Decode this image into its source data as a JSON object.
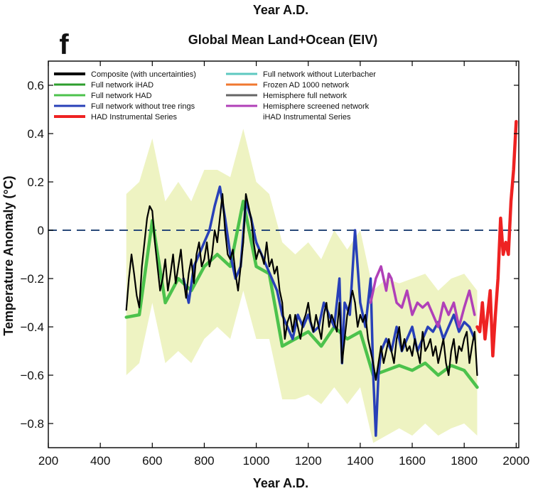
{
  "chart_data": {
    "type": "line",
    "panel_label": "f",
    "top_xlabel": "Year A.D.",
    "title": "Global Mean Land+Ocean (EIV)",
    "xlabel": "Year A.D.",
    "ylabel": "Temperature Anomaly (°C)",
    "xlim": [
      200,
      2010
    ],
    "ylim": [
      -0.9,
      0.7
    ],
    "xticks": [
      200,
      400,
      600,
      800,
      1000,
      1200,
      1400,
      1600,
      1800,
      2000
    ],
    "yticks": [
      -0.8,
      -0.6,
      -0.4,
      -0.2,
      0,
      0.2,
      0.4,
      0.6
    ],
    "ytick_labels": [
      "−0.8",
      "−0.6",
      "−0.4",
      "−0.2",
      "0",
      "0.2",
      "0.4",
      "0.6"
    ],
    "reference_line": 0,
    "legend_placement": "top-left",
    "legend": [
      {
        "label": "Composite (with uncertainties)",
        "color": "#000000"
      },
      {
        "label": "Full network iHAD",
        "color": "#2e9e2e"
      },
      {
        "label": "Full network HAD",
        "color": "#4cc24c"
      },
      {
        "label": "Full network without tree rings",
        "color": "#2840b8"
      },
      {
        "label": "HAD Instrumental Series",
        "color": "#ee2222"
      },
      {
        "label": "Full network without Luterbacher",
        "color": "#5ec8c0"
      },
      {
        "label": "Frozen AD 1000 network",
        "color": "#f07830"
      },
      {
        "label": "Hemisphere full network",
        "color": "#666666"
      },
      {
        "label": "Hemisphere screened network",
        "color": "#b040b8"
      },
      {
        "label": "iHAD Instrumental Series",
        "color": "#ffffff"
      }
    ],
    "series": [
      {
        "name": "Composite (with uncertainties)",
        "color": "#000000",
        "width": 2.2,
        "x": [
          500,
          510,
          520,
          530,
          540,
          550,
          560,
          570,
          580,
          590,
          600,
          610,
          620,
          630,
          640,
          650,
          660,
          670,
          680,
          690,
          700,
          710,
          720,
          730,
          740,
          750,
          760,
          770,
          780,
          790,
          800,
          810,
          820,
          830,
          840,
          850,
          860,
          870,
          880,
          890,
          900,
          910,
          920,
          930,
          940,
          950,
          960,
          970,
          980,
          990,
          1000,
          1010,
          1020,
          1030,
          1040,
          1050,
          1060,
          1070,
          1080,
          1090,
          1100,
          1110,
          1120,
          1130,
          1140,
          1150,
          1160,
          1170,
          1180,
          1190,
          1200,
          1210,
          1220,
          1230,
          1240,
          1250,
          1260,
          1270,
          1280,
          1290,
          1300,
          1310,
          1320,
          1330,
          1340,
          1350,
          1360,
          1370,
          1380,
          1390,
          1400,
          1410,
          1420,
          1430,
          1440,
          1450,
          1460,
          1470,
          1480,
          1490,
          1500,
          1510,
          1520,
          1530,
          1540,
          1550,
          1560,
          1570,
          1580,
          1590,
          1600,
          1610,
          1620,
          1630,
          1640,
          1650,
          1660,
          1670,
          1680,
          1690,
          1700,
          1710,
          1720,
          1730,
          1740,
          1750,
          1760,
          1770,
          1780,
          1790,
          1800,
          1810,
          1820,
          1830,
          1840,
          1850
        ],
        "y": [
          -0.33,
          -0.2,
          -0.1,
          -0.18,
          -0.27,
          -0.32,
          -0.15,
          -0.05,
          0.05,
          0.1,
          0.08,
          -0.05,
          -0.15,
          -0.25,
          -0.2,
          -0.12,
          -0.25,
          -0.18,
          -0.1,
          -0.22,
          -0.15,
          -0.08,
          -0.2,
          -0.28,
          -0.18,
          -0.12,
          -0.22,
          -0.1,
          -0.05,
          -0.15,
          -0.12,
          -0.05,
          -0.15,
          -0.1,
          0.0,
          -0.05,
          0.05,
          0.15,
          0.0,
          -0.1,
          -0.12,
          -0.08,
          -0.18,
          -0.25,
          -0.15,
          -0.05,
          0.15,
          0.1,
          0.05,
          -0.05,
          -0.12,
          -0.08,
          -0.1,
          -0.14,
          -0.05,
          -0.15,
          -0.12,
          -0.18,
          -0.15,
          -0.25,
          -0.3,
          -0.45,
          -0.38,
          -0.35,
          -0.42,
          -0.35,
          -0.4,
          -0.45,
          -0.38,
          -0.35,
          -0.3,
          -0.38,
          -0.42,
          -0.35,
          -0.4,
          -0.45,
          -0.35,
          -0.3,
          -0.4,
          -0.35,
          -0.38,
          -0.42,
          -0.3,
          -0.55,
          -0.45,
          -0.35,
          -0.3,
          -0.25,
          -0.3,
          -0.4,
          -0.35,
          -0.38,
          -0.35,
          -0.45,
          -0.5,
          -0.55,
          -0.62,
          -0.55,
          -0.48,
          -0.55,
          -0.5,
          -0.45,
          -0.5,
          -0.55,
          -0.45,
          -0.4,
          -0.5,
          -0.45,
          -0.5,
          -0.48,
          -0.52,
          -0.45,
          -0.5,
          -0.55,
          -0.42,
          -0.5,
          -0.48,
          -0.45,
          -0.52,
          -0.48,
          -0.55,
          -0.5,
          -0.45,
          -0.55,
          -0.6,
          -0.5,
          -0.45,
          -0.55,
          -0.48,
          -0.5,
          -0.45,
          -0.42,
          -0.55,
          -0.48,
          -0.42,
          -0.6
        ]
      },
      {
        "name": "Full network HAD",
        "color": "#4cc24c",
        "width": 4.5,
        "x": [
          500,
          550,
          600,
          650,
          700,
          750,
          800,
          850,
          900,
          950,
          1000,
          1050,
          1100,
          1150,
          1200,
          1250,
          1300,
          1350,
          1400,
          1450,
          1500,
          1550,
          1600,
          1650,
          1700,
          1750,
          1800,
          1850
        ],
        "y": [
          -0.36,
          -0.35,
          0.04,
          -0.3,
          -0.2,
          -0.25,
          -0.15,
          -0.1,
          -0.15,
          0.12,
          -0.15,
          -0.18,
          -0.48,
          -0.45,
          -0.42,
          -0.48,
          -0.4,
          -0.45,
          -0.42,
          -0.6,
          -0.58,
          -0.56,
          -0.58,
          -0.55,
          -0.6,
          -0.56,
          -0.58,
          -0.65
        ]
      },
      {
        "name": "Full network without tree rings",
        "color": "#2840b8",
        "width": 3.5,
        "x": [
          720,
          740,
          760,
          780,
          800,
          820,
          840,
          860,
          880,
          900,
          920,
          940,
          960,
          980,
          1000,
          1020,
          1040,
          1060,
          1080,
          1100,
          1120,
          1140,
          1160,
          1180,
          1200,
          1220,
          1240,
          1260,
          1280,
          1300,
          1320,
          1330,
          1340,
          1360,
          1380,
          1400,
          1420,
          1440,
          1450,
          1460,
          1470,
          1480,
          1500,
          1520,
          1540,
          1560,
          1580,
          1600,
          1620,
          1640,
          1660,
          1680,
          1700,
          1720,
          1740,
          1760,
          1780,
          1800,
          1820,
          1840
        ],
        "y": [
          -0.2,
          -0.3,
          -0.15,
          -0.1,
          -0.05,
          0.0,
          0.1,
          0.18,
          0.05,
          -0.1,
          -0.2,
          -0.15,
          0.12,
          0.05,
          -0.05,
          -0.1,
          -0.15,
          -0.2,
          -0.25,
          -0.35,
          -0.4,
          -0.45,
          -0.35,
          -0.4,
          -0.35,
          -0.42,
          -0.4,
          -0.3,
          -0.35,
          -0.4,
          -0.2,
          -0.55,
          -0.3,
          -0.35,
          0.0,
          -0.3,
          -0.4,
          -0.2,
          -0.6,
          -0.85,
          -0.6,
          -0.5,
          -0.45,
          -0.5,
          -0.4,
          -0.5,
          -0.45,
          -0.4,
          -0.5,
          -0.45,
          -0.4,
          -0.42,
          -0.38,
          -0.45,
          -0.4,
          -0.35,
          -0.42,
          -0.38,
          -0.4,
          -0.45
        ]
      },
      {
        "name": "Hemisphere screened network",
        "color": "#b040b8",
        "width": 3.5,
        "x": [
          1440,
          1460,
          1480,
          1500,
          1510,
          1520,
          1540,
          1560,
          1580,
          1600,
          1620,
          1640,
          1660,
          1680,
          1700,
          1720,
          1740,
          1760,
          1780,
          1800,
          1820,
          1840
        ],
        "y": [
          -0.3,
          -0.2,
          -0.15,
          -0.25,
          -0.18,
          -0.2,
          -0.3,
          -0.32,
          -0.25,
          -0.35,
          -0.3,
          -0.32,
          -0.3,
          -0.35,
          -0.4,
          -0.3,
          -0.35,
          -0.3,
          -0.4,
          -0.32,
          -0.25,
          -0.35
        ]
      },
      {
        "name": "HAD Instrumental Series",
        "color": "#ee2222",
        "width": 4.5,
        "x": [
          1850,
          1860,
          1870,
          1880,
          1890,
          1900,
          1910,
          1920,
          1930,
          1940,
          1950,
          1960,
          1970,
          1980,
          1990,
          2000
        ],
        "y": [
          -0.4,
          -0.42,
          -0.3,
          -0.45,
          -0.35,
          -0.25,
          -0.52,
          -0.35,
          -0.2,
          0.05,
          -0.1,
          -0.05,
          -0.1,
          0.12,
          0.25,
          0.45
        ]
      }
    ],
    "uncertainty_band": {
      "name": "Composite (with uncertainties)",
      "color": "#eef3c2",
      "x": [
        500,
        550,
        600,
        650,
        700,
        750,
        800,
        850,
        900,
        950,
        1000,
        1050,
        1100,
        1150,
        1200,
        1250,
        1300,
        1350,
        1400,
        1450,
        1500,
        1550,
        1600,
        1650,
        1700,
        1750,
        1800,
        1850
      ],
      "lower": [
        -0.6,
        -0.55,
        -0.3,
        -0.55,
        -0.5,
        -0.55,
        -0.45,
        -0.4,
        -0.45,
        -0.25,
        -0.45,
        -0.45,
        -0.7,
        -0.7,
        -0.68,
        -0.72,
        -0.65,
        -0.72,
        -0.65,
        -0.88,
        -0.85,
        -0.82,
        -0.85,
        -0.8,
        -0.85,
        -0.82,
        -0.8,
        -0.85
      ],
      "upper": [
        0.15,
        0.2,
        0.38,
        0.12,
        0.2,
        0.12,
        0.25,
        0.25,
        0.22,
        0.42,
        0.2,
        0.15,
        -0.05,
        -0.1,
        -0.05,
        -0.12,
        0.0,
        -0.08,
        0.0,
        -0.25,
        -0.2,
        -0.22,
        -0.2,
        -0.18,
        -0.25,
        -0.2,
        -0.18,
        -0.25
      ]
    }
  }
}
